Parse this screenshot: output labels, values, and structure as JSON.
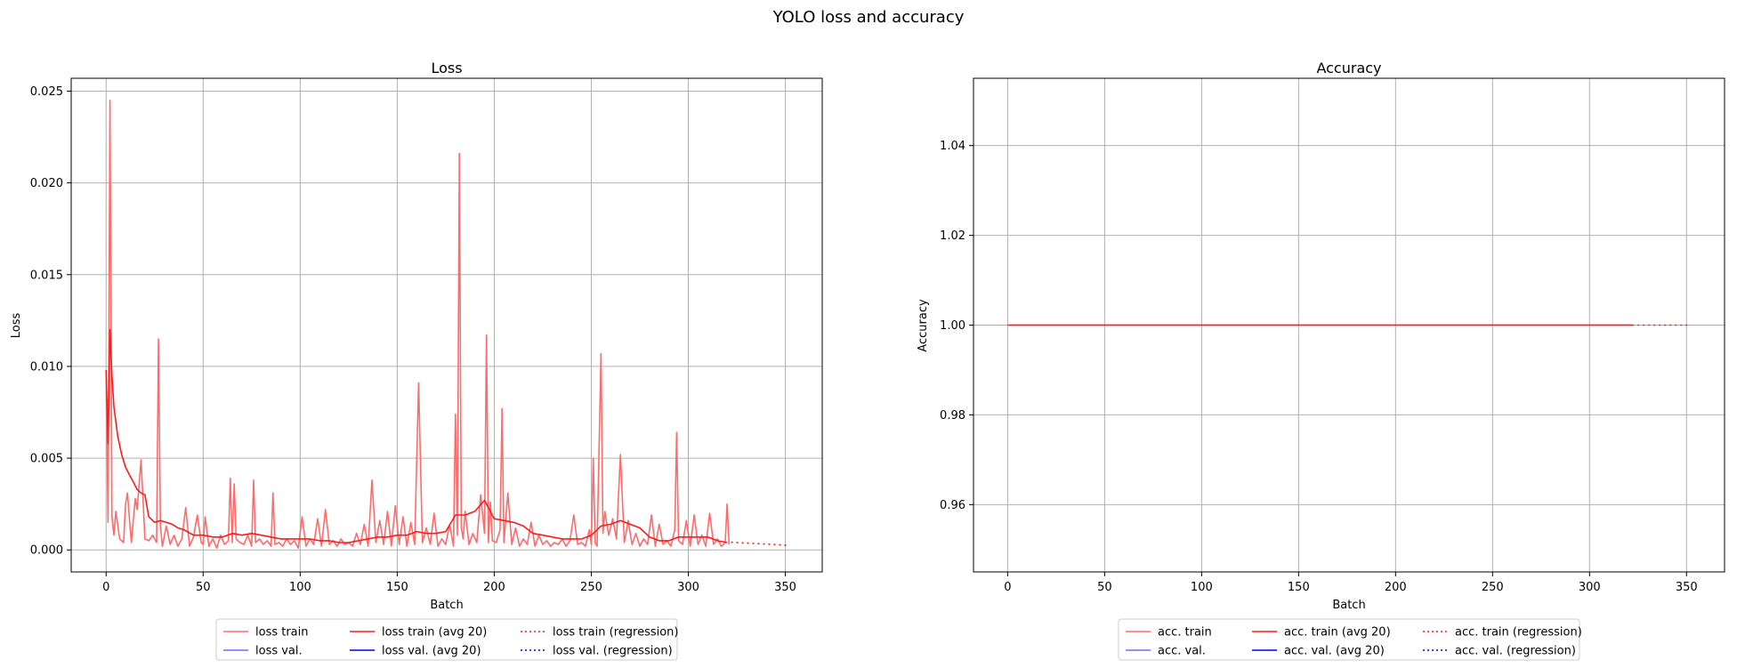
{
  "figure": {
    "title": "YOLO loss and accuracy"
  },
  "colors": {
    "train_raw": "#ff6b6b",
    "train_avg": "#ff1a1a",
    "val_raw": "#6b6bff",
    "val_avg": "#0000ee",
    "grid": "#b0b0b0"
  },
  "chart_data": [
    {
      "type": "line",
      "title": "Loss",
      "xlabel": "Batch",
      "ylabel": "Loss",
      "xlim": [
        -18,
        369
      ],
      "ylim": [
        -0.0012,
        0.0257
      ],
      "xticks": [
        0,
        50,
        100,
        150,
        200,
        250,
        300,
        350
      ],
      "yticks": [
        0.0,
        0.005,
        0.01,
        0.015,
        0.02,
        0.025
      ],
      "ytick_labels": [
        "0.000",
        "0.005",
        "0.010",
        "0.015",
        "0.020",
        "0.025"
      ],
      "grid": true,
      "legend_placement": "bottom-center",
      "legend": [
        "loss train",
        "loss val.",
        "loss train (avg 20)",
        "loss val. (avg 20)",
        "loss train (regression)",
        "loss val. (regression)"
      ],
      "series": [
        {
          "name": "loss train",
          "style": "raw",
          "x": [
            0,
            1,
            2,
            3,
            4,
            5,
            7,
            9,
            10,
            11,
            13,
            15,
            16,
            18,
            20,
            22,
            24,
            26,
            27,
            28,
            29,
            31,
            33,
            35,
            37,
            39,
            41,
            43,
            45,
            47,
            49,
            50,
            51,
            53,
            55,
            57,
            59,
            61,
            63,
            64,
            65,
            66,
            67,
            69,
            71,
            73,
            75,
            76,
            77,
            79,
            81,
            83,
            85,
            86,
            87,
            89,
            91,
            93,
            95,
            97,
            99,
            101,
            103,
            105,
            107,
            109,
            111,
            113,
            115,
            117,
            119,
            121,
            123,
            125,
            127,
            129,
            131,
            133,
            135,
            137,
            139,
            141,
            143,
            145,
            147,
            149,
            151,
            153,
            155,
            157,
            159,
            161,
            163,
            165,
            167,
            169,
            171,
            173,
            175,
            177,
            179,
            180,
            181,
            182,
            183,
            184,
            185,
            187,
            189,
            191,
            193,
            195,
            196,
            197,
            198,
            199,
            201,
            203,
            204,
            205,
            207,
            209,
            211,
            213,
            215,
            217,
            219,
            221,
            223,
            225,
            227,
            229,
            231,
            233,
            235,
            237,
            239,
            241,
            243,
            245,
            247,
            249,
            250,
            251,
            252,
            253,
            255,
            256,
            257,
            259,
            261,
            263,
            265,
            267,
            269,
            271,
            273,
            275,
            277,
            279,
            281,
            283,
            285,
            287,
            289,
            291,
            293,
            294,
            295,
            297,
            299,
            301,
            303,
            305,
            307,
            309,
            311,
            313,
            315,
            317,
            319,
            320,
            321
          ],
          "y": [
            0.0098,
            0.0015,
            0.0245,
            0.0018,
            0.0008,
            0.0021,
            0.0006,
            0.0004,
            0.0025,
            0.0031,
            0.0004,
            0.0028,
            0.0022,
            0.0049,
            0.0006,
            0.0005,
            0.0008,
            0.0004,
            0.0115,
            0.0013,
            0.0002,
            0.0013,
            0.0003,
            0.0008,
            0.0002,
            0.0006,
            0.0023,
            0.0002,
            0.0007,
            0.0019,
            0.0004,
            0.0003,
            0.0018,
            0.0002,
            0.0006,
            0.0001,
            0.0008,
            0.0003,
            0.0005,
            0.0039,
            0.0004,
            0.0036,
            0.0006,
            0.0004,
            0.0003,
            0.0008,
            0.0002,
            0.0038,
            0.0004,
            0.0006,
            0.0003,
            0.0005,
            0.0002,
            0.0031,
            0.0003,
            0.0004,
            0.0002,
            0.0006,
            0.0003,
            0.0005,
            0.0001,
            0.0018,
            0.0002,
            0.0006,
            0.0003,
            0.0017,
            0.0002,
            0.0022,
            0.0003,
            0.0005,
            0.0002,
            0.0006,
            0.0003,
            0.0004,
            0.0002,
            0.0009,
            0.0003,
            0.0014,
            0.0002,
            0.0038,
            0.0004,
            0.0016,
            0.0003,
            0.0021,
            0.0002,
            0.0024,
            0.0003,
            0.0018,
            0.0002,
            0.0015,
            0.0003,
            0.0091,
            0.0004,
            0.0012,
            0.0003,
            0.002,
            0.0002,
            0.0006,
            0.0003,
            0.0014,
            0.0002,
            0.0074,
            0.0008,
            0.0216,
            0.0012,
            0.0006,
            0.0021,
            0.0003,
            0.0009,
            0.0004,
            0.003,
            0.0009,
            0.0117,
            0.0004,
            0.0026,
            0.0005,
            0.0004,
            0.0011,
            0.0077,
            0.0004,
            0.0031,
            0.0003,
            0.0012,
            0.0002,
            0.0006,
            0.0003,
            0.0015,
            0.0002,
            0.0008,
            0.0003,
            0.0005,
            0.0002,
            0.0004,
            0.0003,
            0.0006,
            0.0002,
            0.0005,
            0.0019,
            0.0003,
            0.0004,
            0.0002,
            0.0011,
            0.0003,
            0.005,
            0.0004,
            0.0002,
            0.0107,
            0.0009,
            0.0021,
            0.0008,
            0.0017,
            0.0006,
            0.0052,
            0.0004,
            0.0016,
            0.0003,
            0.0009,
            0.0002,
            0.0006,
            0.0003,
            0.0019,
            0.0002,
            0.0014,
            0.0003,
            0.0005,
            0.0002,
            0.0011,
            0.0064,
            0.0005,
            0.0003,
            0.0016,
            0.0002,
            0.0019,
            0.0003,
            0.0008,
            0.0002,
            0.002,
            0.0003,
            0.0006,
            0.0002,
            0.0004,
            0.0025,
            0.0003
          ]
        },
        {
          "name": "loss train (avg 20)",
          "style": "avg",
          "x": [
            0,
            1,
            2,
            3,
            4,
            6,
            8,
            10,
            12,
            14,
            16,
            18,
            20,
            22,
            25,
            28,
            31,
            34,
            37,
            40,
            45,
            50,
            55,
            60,
            65,
            70,
            75,
            80,
            85,
            90,
            95,
            100,
            105,
            110,
            115,
            120,
            125,
            130,
            135,
            140,
            145,
            150,
            155,
            160,
            165,
            170,
            175,
            180,
            185,
            190,
            195,
            200,
            205,
            210,
            215,
            220,
            225,
            230,
            235,
            240,
            245,
            250,
            255,
            260,
            265,
            270,
            275,
            280,
            285,
            290,
            295,
            300,
            305,
            310,
            315,
            320
          ],
          "y": [
            0.0098,
            0.0058,
            0.012,
            0.0095,
            0.0078,
            0.0062,
            0.0052,
            0.0045,
            0.0041,
            0.0037,
            0.0033,
            0.0031,
            0.003,
            0.0018,
            0.0015,
            0.0016,
            0.0015,
            0.0014,
            0.0012,
            0.0011,
            0.0008,
            0.0008,
            0.0007,
            0.0007,
            0.0009,
            0.0008,
            0.0009,
            0.0008,
            0.0007,
            0.0006,
            0.0006,
            0.0006,
            0.0006,
            0.0005,
            0.0005,
            0.0004,
            0.0004,
            0.0005,
            0.0006,
            0.0007,
            0.0007,
            0.0008,
            0.0008,
            0.001,
            0.0009,
            0.0009,
            0.001,
            0.0019,
            0.0019,
            0.0021,
            0.0027,
            0.0017,
            0.0016,
            0.0015,
            0.0013,
            0.0009,
            0.0008,
            0.0007,
            0.0006,
            0.0006,
            0.0006,
            0.0008,
            0.0013,
            0.0014,
            0.0016,
            0.0014,
            0.0012,
            0.0007,
            0.0005,
            0.0005,
            0.0007,
            0.0007,
            0.0007,
            0.0007,
            0.0005,
            0.0004
          ]
        },
        {
          "name": "loss train (regression)",
          "style": "regression",
          "x": [
            322,
            352
          ],
          "y": [
            0.00042,
            0.00025
          ]
        }
      ]
    },
    {
      "type": "line",
      "title": "Accuracy",
      "xlabel": "Batch",
      "ylabel": "Accuracy",
      "xlim": [
        -17.6,
        369.6
      ],
      "ylim": [
        0.945,
        1.055
      ],
      "xticks": [
        0,
        50,
        100,
        150,
        200,
        250,
        300,
        350
      ],
      "yticks": [
        0.96,
        0.98,
        1.0,
        1.02,
        1.04
      ],
      "ytick_labels": [
        "0.96",
        "0.98",
        "1.00",
        "1.02",
        "1.04"
      ],
      "grid": true,
      "legend_placement": "bottom-center",
      "legend": [
        "acc. train",
        "acc. val.",
        "acc. train (avg 20)",
        "acc. val. (avg 20)",
        "acc. train (regression)",
        "acc. val. (regression)"
      ],
      "series": [
        {
          "name": "acc. train",
          "style": "raw",
          "x": [
            0,
            322
          ],
          "y": [
            1.0,
            1.0
          ]
        },
        {
          "name": "acc. train (avg 20)",
          "style": "avg",
          "x": [
            0,
            322
          ],
          "y": [
            1.0,
            1.0
          ]
        },
        {
          "name": "acc. train (regression)",
          "style": "regression",
          "x": [
            322,
            352
          ],
          "y": [
            1.0,
            1.0
          ]
        }
      ]
    }
  ]
}
